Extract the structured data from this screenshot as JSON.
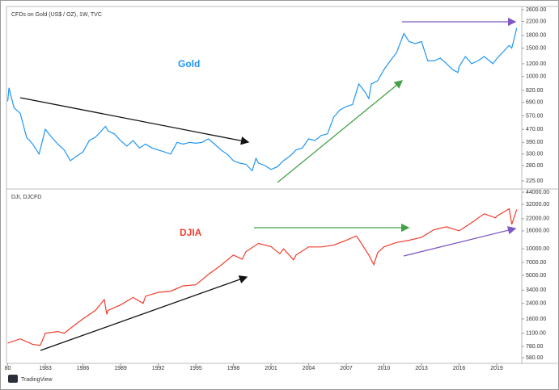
{
  "chart_data": [
    {
      "type": "line",
      "title": "CFDs on Gold (US$ / OZ), 1W, TVC",
      "annotation": "Gold",
      "log": true,
      "xlim": [
        1979.9,
        2021
      ],
      "ylim": [
        205,
        2660
      ],
      "yticks": [
        {
          "value": 2600,
          "label": "2600.00"
        },
        {
          "value": 2200,
          "label": "2200.00"
        },
        {
          "value": 1800,
          "label": "1800.00"
        },
        {
          "value": 1500,
          "label": "1500.00"
        },
        {
          "value": 1200,
          "label": "1200.00"
        },
        {
          "value": 1000,
          "label": "1000.00"
        },
        {
          "value": 820,
          "label": "820.00"
        },
        {
          "value": 690,
          "label": "690.00"
        },
        {
          "value": 570,
          "label": "570.00"
        },
        {
          "value": 470,
          "label": "470.00"
        },
        {
          "value": 390,
          "label": "390.00"
        },
        {
          "value": 330,
          "label": "330.00"
        },
        {
          "value": 280,
          "label": "280.00"
        },
        {
          "value": 225,
          "label": "225.00"
        }
      ],
      "x": [
        1980,
        1980.1,
        1980.5,
        1981,
        1981.5,
        1982,
        1982.5,
        1983,
        1983.5,
        1984,
        1984.5,
        1985,
        1985.5,
        1986,
        1986.5,
        1987,
        1987.8,
        1988,
        1988.5,
        1989,
        1989.5,
        1990,
        1990.5,
        1991,
        1991.5,
        1992,
        1992.5,
        1993,
        1993.5,
        1994,
        1994.5,
        1995,
        1995.5,
        1996,
        1996.5,
        1997,
        1997.5,
        1998,
        1998.5,
        1999,
        1999.5,
        1999.8,
        2000,
        2000.5,
        2001,
        2001.5,
        2002,
        2002.5,
        2003,
        2003.5,
        2004,
        2004.5,
        2005,
        2005.5,
        2006,
        2006.5,
        2007,
        2007.5,
        2008,
        2008.5,
        2008.8,
        2009,
        2009.5,
        2010,
        2010.5,
        2011,
        2011.6,
        2012,
        2012.5,
        2013,
        2013.5,
        2014,
        2014.5,
        2015,
        2015.5,
        2015.9,
        2016,
        2016.5,
        2017,
        2017.5,
        2018,
        2018.7,
        2019,
        2019.5,
        2020,
        2020.2,
        2020.6
      ],
      "series": [
        {
          "name": "Gold",
          "color": "#2196f3",
          "values": [
            700,
            850,
            640,
            590,
            420,
            380,
            330,
            470,
            420,
            380,
            350,
            300,
            320,
            340,
            400,
            420,
            490,
            460,
            440,
            400,
            370,
            400,
            360,
            380,
            360,
            350,
            340,
            330,
            390,
            380,
            390,
            385,
            390,
            410,
            380,
            350,
            330,
            300,
            290,
            285,
            260,
            310,
            290,
            280,
            265,
            275,
            300,
            320,
            350,
            360,
            410,
            400,
            430,
            440,
            560,
            620,
            650,
            670,
            900,
            800,
            730,
            900,
            940,
            1100,
            1250,
            1400,
            1850,
            1650,
            1600,
            1650,
            1250,
            1250,
            1300,
            1200,
            1100,
            1060,
            1150,
            1330,
            1200,
            1250,
            1330,
            1200,
            1290,
            1420,
            1560,
            1500,
            2000
          ]
        }
      ]
    },
    {
      "type": "line",
      "title": "DJI, DJCFD",
      "annotation": "DJIA",
      "log": true,
      "xlim": [
        1979.9,
        2021
      ],
      "ylim": [
        500,
        45900
      ],
      "yticks": [
        {
          "value": 44000,
          "label": "44000.00"
        },
        {
          "value": 32000,
          "label": "32000.00"
        },
        {
          "value": 22000,
          "label": "22000.00"
        },
        {
          "value": 16000,
          "label": "16000.00"
        },
        {
          "value": 10000,
          "label": "10000.00"
        },
        {
          "value": 7000,
          "label": "7000.00"
        },
        {
          "value": 5000,
          "label": "5000.00"
        },
        {
          "value": 3400,
          "label": "3400.00"
        },
        {
          "value": 2400,
          "label": "2400.00"
        },
        {
          "value": 1600,
          "label": "1600.00"
        },
        {
          "value": 1100,
          "label": "1100.00"
        },
        {
          "value": 780,
          "label": "780.00"
        },
        {
          "value": 580,
          "label": "580.00"
        }
      ],
      "xticks": [
        {
          "value": 1980,
          "label": "80"
        },
        1983,
        1986,
        1989,
        1992,
        1995,
        1998,
        2001,
        2004,
        2007,
        2010,
        2013,
        2016,
        2019
      ],
      "x": [
        1980,
        1981,
        1982,
        1982.6,
        1983,
        1984,
        1984.5,
        1985,
        1986,
        1987,
        1987.7,
        1987.9,
        1988,
        1989,
        1990,
        1990.8,
        1991,
        1992,
        1993,
        1994,
        1995,
        1996,
        1997,
        1998,
        1998.7,
        1999,
        2000,
        2001,
        2001.7,
        2002,
        2002.8,
        2003,
        2004,
        2005,
        2006,
        2007,
        2007.8,
        2008,
        2008.8,
        2009.2,
        2009.5,
        2010,
        2011,
        2012,
        2013,
        2014,
        2015,
        2016,
        2017,
        2018,
        2018.9,
        2019,
        2020,
        2020.2,
        2020.6
      ],
      "series": [
        {
          "name": "DJIA",
          "color": "#f23d2d",
          "values": [
            850,
            950,
            820,
            800,
            1100,
            1150,
            1100,
            1250,
            1600,
            2000,
            2650,
            1800,
            2000,
            2300,
            2800,
            2400,
            2900,
            3200,
            3300,
            3800,
            3900,
            5100,
            6500,
            8500,
            7600,
            9300,
            11500,
            10600,
            8800,
            10000,
            7500,
            8500,
            10500,
            10500,
            11000,
            12500,
            14000,
            12800,
            8500,
            6600,
            9000,
            10500,
            11800,
            12500,
            13500,
            16500,
            17800,
            16000,
            19800,
            25000,
            22500,
            23500,
            28500,
            19000,
            28000
          ]
        }
      ]
    }
  ],
  "footer": "TradingView"
}
